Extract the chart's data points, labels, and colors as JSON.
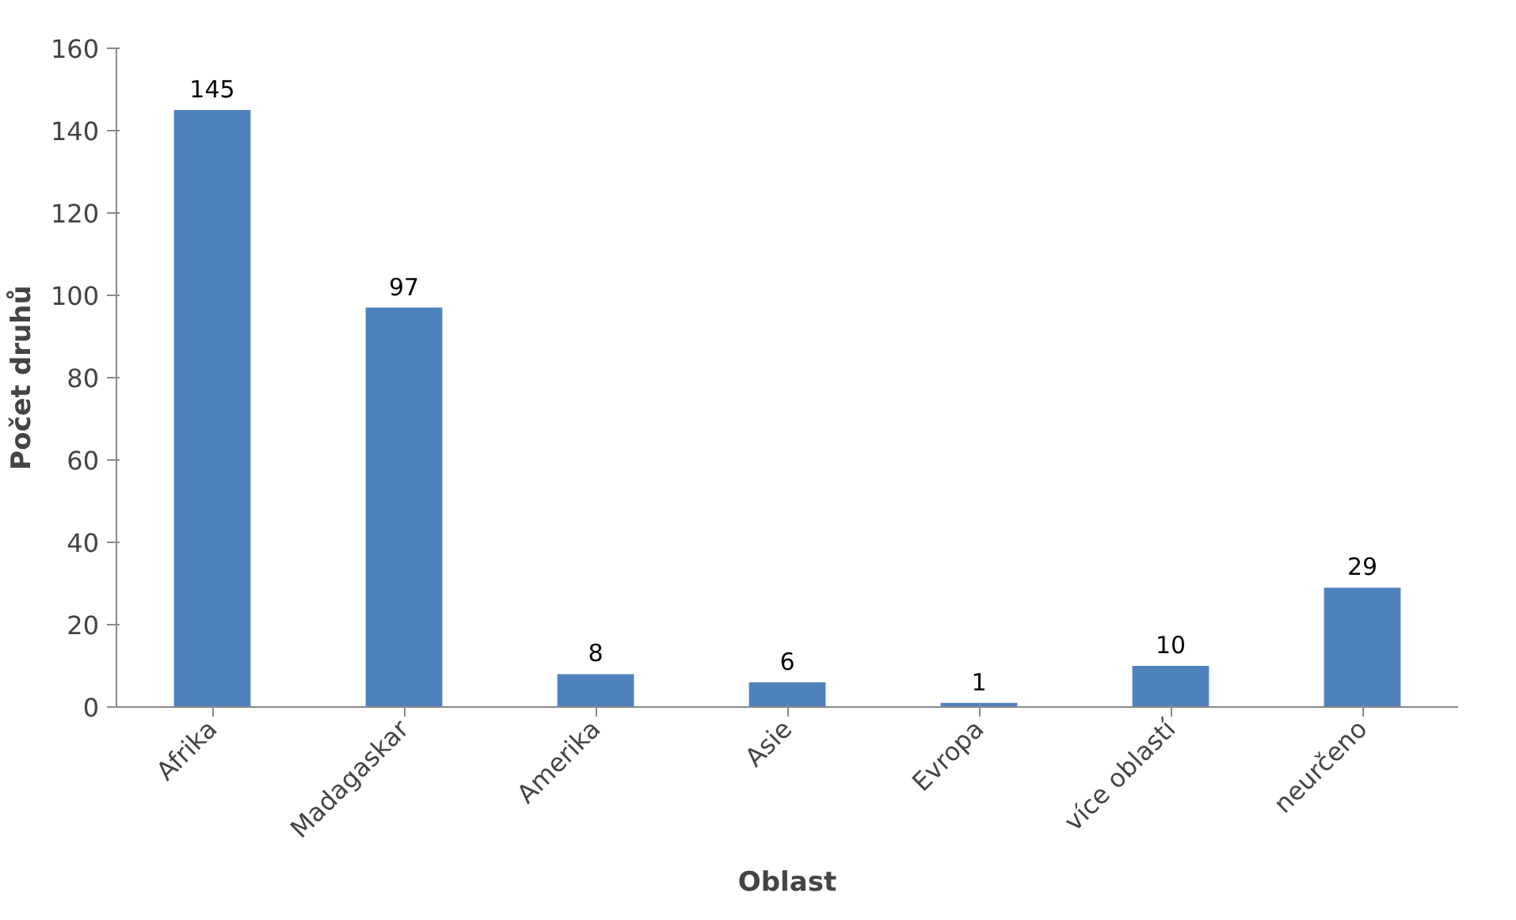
{
  "chart_data": {
    "type": "bar",
    "xlabel": "Oblast",
    "ylabel": "Počet druhů",
    "categories": [
      "Afrika",
      "Madagaskar",
      "Amerika",
      "Asie",
      "Evropa",
      "více oblastí",
      "neurčeno"
    ],
    "values": [
      145,
      97,
      8,
      6,
      1,
      10,
      29
    ],
    "color": "#4f81bd",
    "ylim": [
      0,
      160
    ],
    "yticks": [
      0,
      20,
      40,
      60,
      80,
      100,
      120,
      140,
      160
    ],
    "grid": false,
    "data_labels": true
  }
}
